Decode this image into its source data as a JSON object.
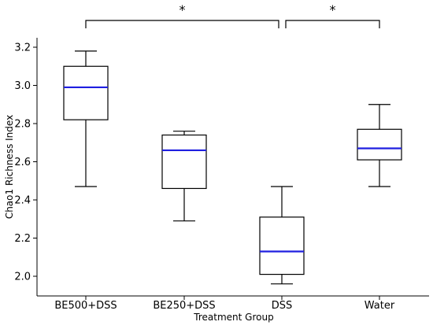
{
  "chart_data": {
    "type": "box",
    "title": "",
    "xlabel": "Treatment Group",
    "ylabel": "Chao1 Richness Index",
    "ylim": [
      1.9,
      3.25
    ],
    "yticks": [
      "2.0",
      "2.2",
      "2.4",
      "2.6",
      "2.8",
      "3.0",
      "3.2"
    ],
    "grid": false,
    "median_color": "#1f1fe0",
    "box_color": "#000000",
    "groups": [
      {
        "name": "BE500+DSS",
        "whisker_low": 2.47,
        "q1": 2.82,
        "median": 2.99,
        "q3": 3.1,
        "whisker_high": 3.18
      },
      {
        "name": "BE250+DSS",
        "whisker_low": 2.29,
        "q1": 2.46,
        "median": 2.66,
        "q3": 2.74,
        "whisker_high": 2.76
      },
      {
        "name": "DSS",
        "whisker_low": 1.96,
        "q1": 2.01,
        "median": 2.13,
        "q3": 2.31,
        "whisker_high": 2.47
      },
      {
        "name": "Water",
        "whisker_low": 2.47,
        "q1": 2.61,
        "median": 2.67,
        "q3": 2.77,
        "whisker_high": 2.9
      }
    ],
    "significance": [
      {
        "from": "BE500+DSS",
        "to": "DSS",
        "label": "*"
      },
      {
        "from": "DSS",
        "to": "Water",
        "label": "*"
      }
    ]
  }
}
